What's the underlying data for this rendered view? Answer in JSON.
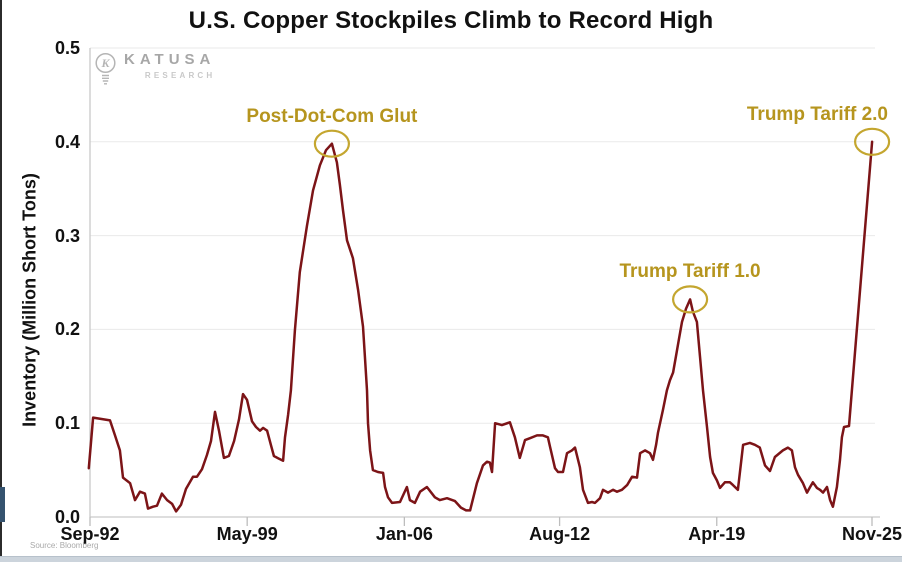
{
  "meta": {
    "source": "Source: Bloomberg"
  },
  "logo": {
    "name": "KATUSA",
    "sub": "RESEARCH"
  },
  "colors": {
    "line": "#7C1417",
    "annotation_text": "#B6951E",
    "annotation_circle": "#C4A62F",
    "grid": "#eaeaea",
    "axis": "#c9c9c9",
    "tick": "#bdbdbd"
  },
  "chart_data": {
    "type": "line",
    "title": "U.S. Copper Stockpiles Climb to Record High",
    "xlabel": "",
    "ylabel": "Inventory (Million Short Tons)",
    "xlim": [
      1992.75,
      2025.917
    ],
    "ylim": [
      0,
      0.5
    ],
    "grid": true,
    "x_tick_labels": [
      "Sep-92",
      "May-99",
      "Jan-06",
      "Aug-12",
      "Apr-19",
      "Nov-25"
    ],
    "x_tick_years": [
      1992.75,
      1999.417,
      2006.083,
      2012.667,
      2019.333,
      2025.917
    ],
    "y_ticks": [
      0.0,
      0.1,
      0.2,
      0.3,
      0.4,
      0.5
    ],
    "y_tick_labels": [
      "0.0",
      "0.1",
      "0.2",
      "0.3",
      "0.4",
      "0.5"
    ],
    "series_label": "U.S. Copper Stockpiles",
    "points": [
      [
        1992.7,
        0.052
      ],
      [
        1992.88,
        0.106
      ],
      [
        1993.6,
        0.103
      ],
      [
        1993.81,
        0.087
      ],
      [
        1994.02,
        0.071
      ],
      [
        1994.15,
        0.042
      ],
      [
        1994.45,
        0.036
      ],
      [
        1994.66,
        0.018
      ],
      [
        1994.87,
        0.027
      ],
      [
        1995.08,
        0.025
      ],
      [
        1995.21,
        0.009
      ],
      [
        1995.42,
        0.011
      ],
      [
        1995.59,
        0.012
      ],
      [
        1995.8,
        0.025
      ],
      [
        1996.02,
        0.018
      ],
      [
        1996.23,
        0.014
      ],
      [
        1996.4,
        0.006
      ],
      [
        1996.61,
        0.013
      ],
      [
        1996.82,
        0.03
      ],
      [
        1997.12,
        0.043
      ],
      [
        1997.29,
        0.043
      ],
      [
        1997.5,
        0.051
      ],
      [
        1997.71,
        0.066
      ],
      [
        1997.88,
        0.081
      ],
      [
        1998.05,
        0.112
      ],
      [
        1998.22,
        0.092
      ],
      [
        1998.43,
        0.063
      ],
      [
        1998.64,
        0.065
      ],
      [
        1998.86,
        0.081
      ],
      [
        1999.07,
        0.104
      ],
      [
        1999.24,
        0.131
      ],
      [
        1999.41,
        0.125
      ],
      [
        1999.62,
        0.102
      ],
      [
        1999.79,
        0.096
      ],
      [
        1999.96,
        0.092
      ],
      [
        2000.09,
        0.095
      ],
      [
        2000.26,
        0.092
      ],
      [
        2000.43,
        0.076
      ],
      [
        2000.55,
        0.065
      ],
      [
        2000.77,
        0.062
      ],
      [
        2000.94,
        0.06
      ],
      [
        2001.02,
        0.085
      ],
      [
        2001.15,
        0.109
      ],
      [
        2001.27,
        0.135
      ],
      [
        2001.44,
        0.199
      ],
      [
        2001.65,
        0.261
      ],
      [
        2001.95,
        0.31
      ],
      [
        2002.21,
        0.348
      ],
      [
        2002.5,
        0.375
      ],
      [
        2002.76,
        0.391
      ],
      [
        2003.01,
        0.398
      ],
      [
        2003.22,
        0.378
      ],
      [
        2003.35,
        0.354
      ],
      [
        2003.48,
        0.327
      ],
      [
        2003.65,
        0.295
      ],
      [
        2003.78,
        0.285
      ],
      [
        2003.9,
        0.276
      ],
      [
        2004.12,
        0.242
      ],
      [
        2004.33,
        0.203
      ],
      [
        2004.41,
        0.171
      ],
      [
        2004.5,
        0.135
      ],
      [
        2004.54,
        0.1
      ],
      [
        2004.63,
        0.071
      ],
      [
        2004.75,
        0.05
      ],
      [
        2004.96,
        0.048
      ],
      [
        2005.18,
        0.047
      ],
      [
        2005.26,
        0.032
      ],
      [
        2005.39,
        0.021
      ],
      [
        2005.56,
        0.015
      ],
      [
        2005.9,
        0.016
      ],
      [
        2006.19,
        0.032
      ],
      [
        2006.32,
        0.018
      ],
      [
        2006.53,
        0.015
      ],
      [
        2006.75,
        0.027
      ],
      [
        2007.04,
        0.032
      ],
      [
        2007.38,
        0.021
      ],
      [
        2007.59,
        0.018
      ],
      [
        2007.89,
        0.02
      ],
      [
        2008.23,
        0.017
      ],
      [
        2008.48,
        0.01
      ],
      [
        2008.7,
        0.007
      ],
      [
        2008.87,
        0.007
      ],
      [
        2009.16,
        0.036
      ],
      [
        2009.42,
        0.055
      ],
      [
        2009.59,
        0.059
      ],
      [
        2009.71,
        0.058
      ],
      [
        2009.8,
        0.048
      ],
      [
        2009.93,
        0.1
      ],
      [
        2010.22,
        0.098
      ],
      [
        2010.56,
        0.101
      ],
      [
        2010.77,
        0.085
      ],
      [
        2010.98,
        0.063
      ],
      [
        2011.2,
        0.082
      ],
      [
        2011.41,
        0.084
      ],
      [
        2011.71,
        0.087
      ],
      [
        2011.96,
        0.087
      ],
      [
        2012.17,
        0.085
      ],
      [
        2012.26,
        0.075
      ],
      [
        2012.47,
        0.052
      ],
      [
        2012.6,
        0.048
      ],
      [
        2012.81,
        0.048
      ],
      [
        2012.98,
        0.068
      ],
      [
        2013.19,
        0.071
      ],
      [
        2013.32,
        0.074
      ],
      [
        2013.53,
        0.053
      ],
      [
        2013.66,
        0.029
      ],
      [
        2013.87,
        0.015
      ],
      [
        2014.04,
        0.016
      ],
      [
        2014.17,
        0.015
      ],
      [
        2014.38,
        0.02
      ],
      [
        2014.51,
        0.029
      ],
      [
        2014.72,
        0.026
      ],
      [
        2014.93,
        0.029
      ],
      [
        2015.1,
        0.027
      ],
      [
        2015.31,
        0.029
      ],
      [
        2015.53,
        0.034
      ],
      [
        2015.74,
        0.043
      ],
      [
        2015.95,
        0.042
      ],
      [
        2016.08,
        0.068
      ],
      [
        2016.29,
        0.071
      ],
      [
        2016.5,
        0.068
      ],
      [
        2016.63,
        0.061
      ],
      [
        2016.76,
        0.077
      ],
      [
        2016.84,
        0.09
      ],
      [
        2017.05,
        0.114
      ],
      [
        2017.22,
        0.135
      ],
      [
        2017.35,
        0.146
      ],
      [
        2017.48,
        0.154
      ],
      [
        2017.6,
        0.171
      ],
      [
        2017.73,
        0.19
      ],
      [
        2017.86,
        0.208
      ],
      [
        2018.03,
        0.222
      ],
      [
        2018.2,
        0.232
      ],
      [
        2018.32,
        0.219
      ],
      [
        2018.49,
        0.208
      ],
      [
        2018.62,
        0.171
      ],
      [
        2018.75,
        0.135
      ],
      [
        2018.92,
        0.096
      ],
      [
        2019.05,
        0.064
      ],
      [
        2019.17,
        0.047
      ],
      [
        2019.34,
        0.039
      ],
      [
        2019.47,
        0.031
      ],
      [
        2019.68,
        0.037
      ],
      [
        2019.89,
        0.037
      ],
      [
        2020.02,
        0.034
      ],
      [
        2020.23,
        0.029
      ],
      [
        2020.45,
        0.077
      ],
      [
        2020.74,
        0.079
      ],
      [
        2020.95,
        0.077
      ],
      [
        2021.16,
        0.074
      ],
      [
        2021.38,
        0.055
      ],
      [
        2021.59,
        0.049
      ],
      [
        2021.8,
        0.064
      ],
      [
        2022.14,
        0.071
      ],
      [
        2022.35,
        0.074
      ],
      [
        2022.52,
        0.071
      ],
      [
        2022.65,
        0.053
      ],
      [
        2022.78,
        0.045
      ],
      [
        2022.99,
        0.036
      ],
      [
        2023.16,
        0.026
      ],
      [
        2023.29,
        0.032
      ],
      [
        2023.41,
        0.037
      ],
      [
        2023.58,
        0.031
      ],
      [
        2023.71,
        0.029
      ],
      [
        2023.84,
        0.026
      ],
      [
        2024.01,
        0.032
      ],
      [
        2024.14,
        0.018
      ],
      [
        2024.26,
        0.011
      ],
      [
        2024.43,
        0.032
      ],
      [
        2024.56,
        0.061
      ],
      [
        2024.64,
        0.085
      ],
      [
        2024.73,
        0.096
      ],
      [
        2024.94,
        0.097
      ],
      [
        2025.92,
        0.4
      ]
    ],
    "annotations": [
      {
        "label": "Post-Dot-Com Glut",
        "year": 2003.01,
        "value": 0.398,
        "align": "center"
      },
      {
        "label": "Trump Tariff 1.0",
        "year": 2018.2,
        "value": 0.232,
        "align": "center"
      },
      {
        "label": "Trump Tariff 2.0",
        "year": 2025.92,
        "value": 0.4,
        "align": "right"
      }
    ]
  }
}
